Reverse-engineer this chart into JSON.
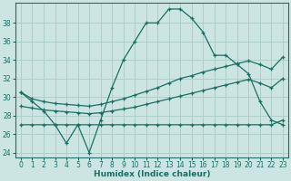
{
  "xlabel": "Humidex (Indice chaleur)",
  "bg_color": "#cde5e2",
  "grid_color": "#aececa",
  "line_color": "#1a6e65",
  "ylim": [
    23.5,
    40.2
  ],
  "xlim": [
    -0.5,
    23.5
  ],
  "yticks": [
    24,
    26,
    28,
    30,
    32,
    34,
    36,
    38
  ],
  "xticks": [
    0,
    1,
    2,
    3,
    4,
    5,
    6,
    7,
    8,
    9,
    10,
    11,
    12,
    13,
    14,
    15,
    16,
    17,
    18,
    19,
    20,
    21,
    22,
    23
  ],
  "series_main": {
    "x": [
      0,
      1,
      2,
      3,
      4,
      5,
      6,
      7,
      8,
      9,
      10,
      11,
      12,
      13,
      14,
      15,
      16,
      17,
      18,
      19,
      20,
      21,
      22,
      23
    ],
    "y": [
      30.5,
      29.5,
      28.5,
      27.0,
      25.0,
      27.0,
      24.0,
      27.5,
      31.0,
      34.0,
      36.0,
      38.0,
      38.0,
      39.5,
      39.5,
      38.5,
      37.0,
      34.5,
      34.5,
      33.5,
      32.5,
      29.5,
      27.5,
      27.0
    ]
  },
  "series_upper": {
    "x": [
      0,
      1,
      2,
      3,
      4,
      5,
      6,
      7,
      8,
      9,
      10,
      11,
      12,
      13,
      14,
      15,
      16,
      17,
      18,
      19,
      20,
      21,
      22,
      23
    ],
    "y": [
      30.5,
      29.8,
      29.5,
      29.3,
      29.2,
      29.1,
      29.0,
      29.2,
      29.5,
      29.8,
      30.2,
      30.6,
      31.0,
      31.5,
      32.0,
      32.3,
      32.7,
      33.0,
      33.3,
      33.6,
      33.9,
      33.5,
      33.0,
      34.3
    ]
  },
  "series_mid": {
    "x": [
      0,
      1,
      2,
      3,
      4,
      5,
      6,
      7,
      8,
      9,
      10,
      11,
      12,
      13,
      14,
      15,
      16,
      17,
      18,
      19,
      20,
      21,
      22,
      23
    ],
    "y": [
      29.0,
      28.8,
      28.6,
      28.5,
      28.4,
      28.3,
      28.2,
      28.3,
      28.5,
      28.7,
      28.9,
      29.2,
      29.5,
      29.8,
      30.1,
      30.4,
      30.7,
      31.0,
      31.3,
      31.6,
      31.9,
      31.5,
      31.0,
      32.0
    ]
  },
  "series_lower": {
    "x": [
      0,
      1,
      2,
      3,
      4,
      5,
      6,
      7,
      8,
      9,
      10,
      11,
      12,
      13,
      14,
      15,
      16,
      17,
      18,
      19,
      20,
      21,
      22,
      23
    ],
    "y": [
      27.0,
      27.0,
      27.0,
      27.0,
      27.0,
      27.0,
      27.0,
      27.0,
      27.0,
      27.0,
      27.0,
      27.0,
      27.0,
      27.0,
      27.0,
      27.0,
      27.0,
      27.0,
      27.0,
      27.0,
      27.0,
      27.0,
      27.0,
      27.5
    ]
  }
}
